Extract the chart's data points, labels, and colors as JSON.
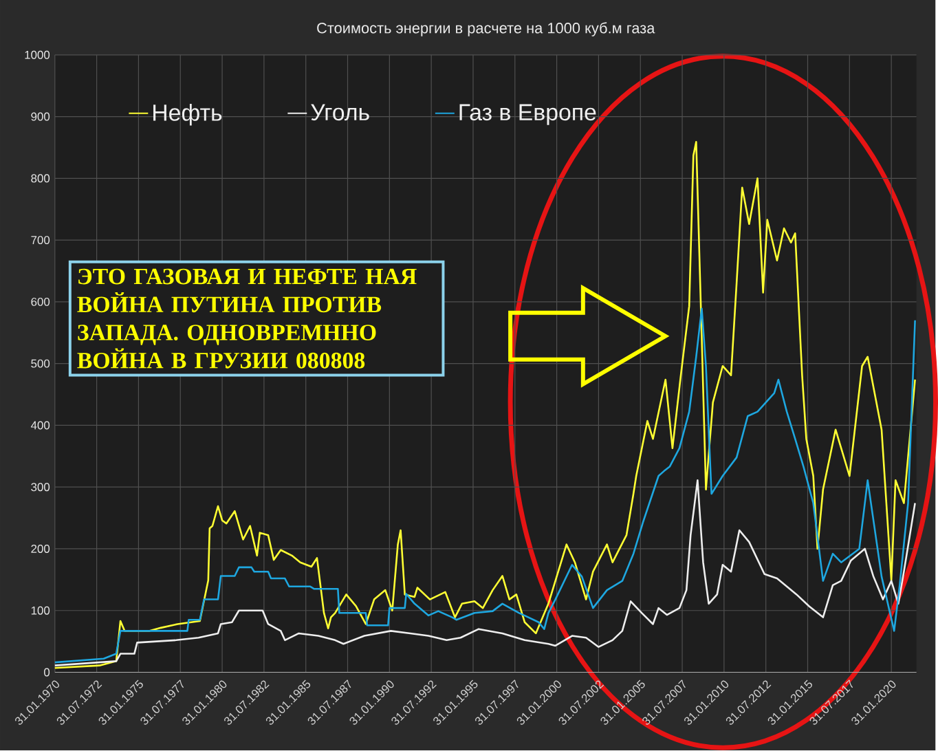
{
  "chart_data": {
    "type": "line",
    "title": "Стоимость энергии в расчете на 1000 куб.м газа",
    "xlim": [
      "1970-01-31",
      "2021-07-31"
    ],
    "xticks": [
      {
        "value": "1970-01-31",
        "label": "31.01.1970"
      },
      {
        "value": "1972-07-31",
        "label": "31.07.1972"
      },
      {
        "value": "1975-01-31",
        "label": "31.01.1975"
      },
      {
        "value": "1977-07-31",
        "label": "31.07.1977"
      },
      {
        "value": "1980-01-31",
        "label": "31.01.1980"
      },
      {
        "value": "1982-07-31",
        "label": "31.07.1982"
      },
      {
        "value": "1985-01-31",
        "label": "31.01.1985"
      },
      {
        "value": "1987-07-31",
        "label": "31.07.1987"
      },
      {
        "value": "1990-01-31",
        "label": "31.01.1990"
      },
      {
        "value": "1992-07-31",
        "label": "31.07.1992"
      },
      {
        "value": "1995-01-31",
        "label": "31.01.1995"
      },
      {
        "value": "1997-07-31",
        "label": "31.07.1997"
      },
      {
        "value": "2000-01-31",
        "label": "31.01.2000"
      },
      {
        "value": "2002-07-31",
        "label": "31.07.2002"
      },
      {
        "value": "2005-01-31",
        "label": "31.01.2005"
      },
      {
        "value": "2007-07-31",
        "label": "31.07.2007"
      },
      {
        "value": "2010-01-31",
        "label": "31.01.2010"
      },
      {
        "value": "2012-07-31",
        "label": "31.07.2012"
      },
      {
        "value": "2015-01-31",
        "label": "31.01.2015"
      },
      {
        "value": "2017-07-31",
        "label": "31.07.2017"
      },
      {
        "value": "2020-01-31",
        "label": "31.01.2020"
      }
    ],
    "ylim": [
      0,
      1000
    ],
    "yticks": [
      0,
      100,
      200,
      300,
      400,
      500,
      600,
      700,
      800,
      900,
      1000
    ],
    "grid": true,
    "legend": "top left",
    "marker": "none",
    "line_style": "solid",
    "annotations": [
      "ЭТО ГАЗОВАЯ И НЕФТЕ НАЯ ВОЙНА ПУТИНА ПРОТИВ ЗАПАДА. ОДНОВРЕМННО ВОЙНА В ГРУЗИИ 080808"
    ],
    "series": [
      {
        "name": "Нефть",
        "color": "#ffff33",
        "x": [
          "1970-02",
          "1972-10",
          "1973-10",
          "1974-01",
          "1974-04",
          "1975-10",
          "1976-06",
          "1977-06",
          "1978-10",
          "1979-04",
          "1979-05",
          "1979-07",
          "1979-11",
          "1980-02",
          "1980-05",
          "1980-11",
          "1981-05",
          "1981-10",
          "1982-03",
          "1982-05",
          "1982-11",
          "1983-03",
          "1983-08",
          "1984-04",
          "1984-10",
          "1985-06",
          "1985-10",
          "1986-03",
          "1986-06",
          "1986-08",
          "1986-11",
          "1987-07",
          "1988-02",
          "1988-09",
          "1989-03",
          "1989-11",
          "1990-04",
          "1990-08",
          "1990-10",
          "1991-01",
          "1991-08",
          "1991-10",
          "1992-07",
          "1993-06",
          "1994-01",
          "1994-06",
          "1995-03",
          "1995-09",
          "1996-04",
          "1996-11",
          "1997-04",
          "1997-09",
          "1998-03",
          "1998-11",
          "1999-08",
          "2000-09",
          "2001-03",
          "2001-11",
          "2002-04",
          "2003-02",
          "2003-06",
          "2004-04",
          "2004-09",
          "2004-11",
          "2005-07",
          "2005-11",
          "2006-08",
          "2007-01",
          "2007-07",
          "2008-01",
          "2008-04",
          "2008-06",
          "2008-10",
          "2009-01",
          "2009-06",
          "2010-01",
          "2010-07",
          "2010-11",
          "2011-03",
          "2011-08",
          "2012-02",
          "2012-06",
          "2012-09",
          "2013-04",
          "2013-09",
          "2014-02",
          "2014-05",
          "2014-10",
          "2015-01",
          "2015-06",
          "2015-09",
          "2016-01",
          "2016-10",
          "2017-08",
          "2018-05",
          "2018-09",
          "2019-07",
          "2020-02",
          "2020-05",
          "2020-11",
          "2021-07"
        ],
        "values": [
          7,
          11,
          18,
          83,
          67,
          67,
          72,
          78,
          83,
          149,
          233,
          237,
          269,
          246,
          241,
          261,
          215,
          237,
          189,
          226,
          222,
          182,
          198,
          189,
          178,
          171,
          185,
          96,
          71,
          89,
          96,
          126,
          107,
          78,
          118,
          133,
          100,
          207,
          230,
          126,
          122,
          137,
          118,
          130,
          89,
          111,
          115,
          104,
          133,
          156,
          118,
          126,
          81,
          63,
          111,
          207,
          178,
          118,
          163,
          207,
          178,
          222,
          289,
          318,
          407,
          378,
          474,
          363,
          481,
          593,
          837,
          859,
          541,
          296,
          437,
          496,
          481,
          630,
          785,
          726,
          800,
          615,
          733,
          667,
          719,
          696,
          711,
          481,
          378,
          318,
          200,
          296,
          393,
          318,
          496,
          511,
          393,
          149,
          311,
          274,
          474
        ]
      },
      {
        "name": "Уголь",
        "color": "#eeeeee",
        "x": [
          "1970-02",
          "1973-10",
          "1974-01",
          "1974-11",
          "1975-01",
          "1977-05",
          "1978-09",
          "1979-11",
          "1980-01",
          "1980-09",
          "1981-02",
          "1982-07",
          "1982-11",
          "1983-08",
          "1983-11",
          "1984-09",
          "1985-11",
          "1986-11",
          "1987-05",
          "1988-08",
          "1990-03",
          "1991-05",
          "1992-06",
          "1993-07",
          "1994-05",
          "1995-06",
          "1996-11",
          "1998-03",
          "1999-08",
          "2000-01",
          "2001-01",
          "2001-11",
          "2002-08",
          "2003-06",
          "2004-01",
          "2004-07",
          "2005-03",
          "2005-11",
          "2006-03",
          "2006-09",
          "2007-06",
          "2007-11",
          "2008-02",
          "2008-07",
          "2008-11",
          "2009-03",
          "2009-09",
          "2010-01",
          "2010-07",
          "2011-01",
          "2011-08",
          "2012-07",
          "2013-04",
          "2014-06",
          "2015-03",
          "2016-01",
          "2016-08",
          "2017-02",
          "2017-09",
          "2018-07",
          "2019-01",
          "2019-08",
          "2020-02",
          "2020-07",
          "2020-11",
          "2021-07"
        ],
        "values": [
          11,
          18,
          30,
          30,
          48,
          52,
          56,
          63,
          78,
          81,
          100,
          100,
          78,
          67,
          52,
          63,
          59,
          52,
          46,
          59,
          67,
          63,
          59,
          52,
          56,
          70,
          63,
          52,
          46,
          43,
          59,
          56,
          41,
          52,
          67,
          115,
          96,
          78,
          104,
          93,
          104,
          133,
          222,
          311,
          178,
          111,
          126,
          174,
          163,
          230,
          211,
          159,
          152,
          126,
          107,
          89,
          141,
          148,
          181,
          200,
          156,
          118,
          148,
          111,
          163,
          274
        ]
      },
      {
        "name": "Газ в Европе",
        "color": "#1ea7e0",
        "x": [
          "1970-02",
          "1973-01",
          "1973-10",
          "1974-01",
          "1978-01",
          "1978-02",
          "1978-10",
          "1979-01",
          "1979-11",
          "1980-01",
          "1980-11",
          "1981-02",
          "1981-11",
          "1982-01",
          "1982-11",
          "1983-01",
          "1983-11",
          "1984-02",
          "1985-05",
          "1985-08",
          "1987-01",
          "1987-02",
          "1988-09",
          "1988-10",
          "1990-01",
          "1990-02",
          "1991-01",
          "1991-02",
          "1991-08",
          "1992-06",
          "1993-01",
          "1993-11",
          "1994-02",
          "1995-03",
          "1996-04",
          "1996-11",
          "1997-11",
          "1999-01",
          "1999-05",
          "1999-08",
          "2000-01",
          "2001-01",
          "2001-08",
          "2002-04",
          "2003-02",
          "2004-01",
          "2004-09",
          "2005-04",
          "2006-03",
          "2006-07",
          "2006-11",
          "2007-06",
          "2008-01",
          "2008-06",
          "2008-10",
          "2009-01",
          "2009-05",
          "2010-01",
          "2010-11",
          "2011-07",
          "2012-02",
          "2013-02",
          "2013-05",
          "2013-11",
          "2014-05",
          "2014-11",
          "2015-06",
          "2016-01",
          "2016-08",
          "2017-02",
          "2018-03",
          "2018-09",
          "2019-07",
          "2020-04",
          "2020-08",
          "2021-02",
          "2021-07"
        ],
        "values": [
          16,
          22,
          30,
          67,
          67,
          85,
          85,
          118,
          118,
          156,
          156,
          170,
          170,
          163,
          163,
          152,
          152,
          139,
          139,
          135,
          135,
          96,
          96,
          76,
          76,
          104,
          104,
          127,
          111,
          92,
          99,
          89,
          85,
          96,
          99,
          111,
          96,
          81,
          70,
          96,
          118,
          174,
          155,
          104,
          133,
          148,
          192,
          244,
          318,
          326,
          333,
          363,
          422,
          511,
          589,
          496,
          289,
          318,
          348,
          415,
          422,
          452,
          474,
          422,
          378,
          333,
          274,
          148,
          192,
          178,
          200,
          311,
          155,
          67,
          141,
          274,
          570
        ]
      }
    ]
  }
}
